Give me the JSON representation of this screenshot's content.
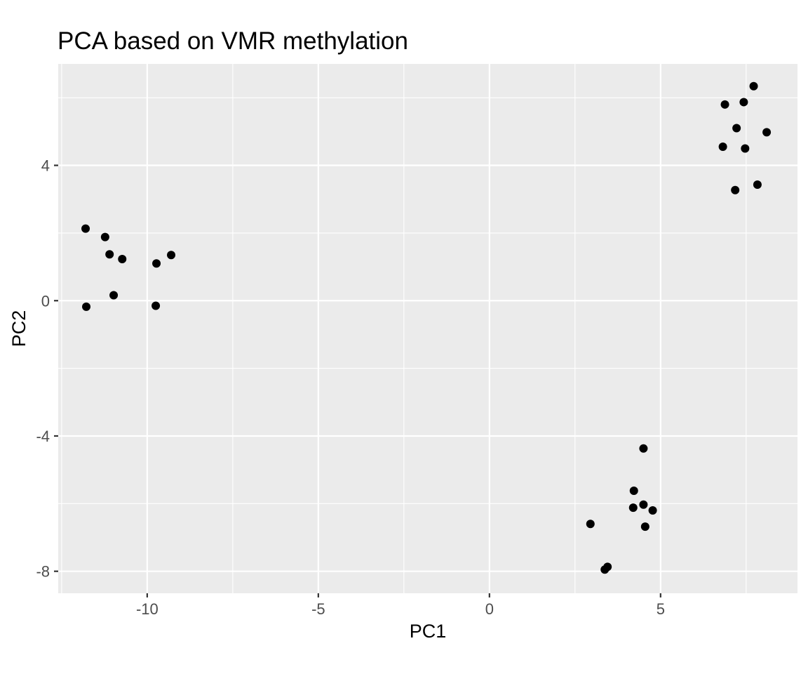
{
  "chart_data": {
    "type": "scatter",
    "title": "PCA based on VMR methylation",
    "xlabel": "PC1",
    "ylabel": "PC2",
    "xlim": [
      -12.6,
      9.0
    ],
    "ylim": [
      -8.65,
      7.0
    ],
    "x_ticks": [
      -10,
      -5,
      0,
      5
    ],
    "x_tick_labels": [
      "-10",
      "-5",
      "0",
      "5"
    ],
    "y_ticks": [
      -8,
      -4,
      0,
      4
    ],
    "y_tick_labels": [
      "-8",
      "-4",
      "0",
      "4"
    ],
    "grid": true,
    "panel_color": "#ebebeb",
    "point_color": "#000000",
    "points": [
      {
        "x": -11.8,
        "y": 2.13
      },
      {
        "x": -11.23,
        "y": 1.88
      },
      {
        "x": -11.1,
        "y": 1.37
      },
      {
        "x": -10.73,
        "y": 1.23
      },
      {
        "x": -9.73,
        "y": 1.1
      },
      {
        "x": -9.3,
        "y": 1.35
      },
      {
        "x": -10.98,
        "y": 0.16
      },
      {
        "x": -11.78,
        "y": -0.18
      },
      {
        "x": -9.75,
        "y": -0.15
      },
      {
        "x": 7.72,
        "y": 6.34
      },
      {
        "x": 6.88,
        "y": 5.8
      },
      {
        "x": 7.43,
        "y": 5.87
      },
      {
        "x": 7.22,
        "y": 5.1
      },
      {
        "x": 8.1,
        "y": 4.98
      },
      {
        "x": 6.82,
        "y": 4.55
      },
      {
        "x": 7.47,
        "y": 4.5
      },
      {
        "x": 7.83,
        "y": 3.43
      },
      {
        "x": 7.18,
        "y": 3.27
      },
      {
        "x": 4.5,
        "y": -4.37
      },
      {
        "x": 4.22,
        "y": -5.62
      },
      {
        "x": 4.2,
        "y": -6.12
      },
      {
        "x": 4.5,
        "y": -6.03
      },
      {
        "x": 4.77,
        "y": -6.2
      },
      {
        "x": 4.55,
        "y": -6.68
      },
      {
        "x": 2.95,
        "y": -6.6
      },
      {
        "x": 3.45,
        "y": -7.87
      },
      {
        "x": 3.37,
        "y": -7.95
      }
    ]
  }
}
